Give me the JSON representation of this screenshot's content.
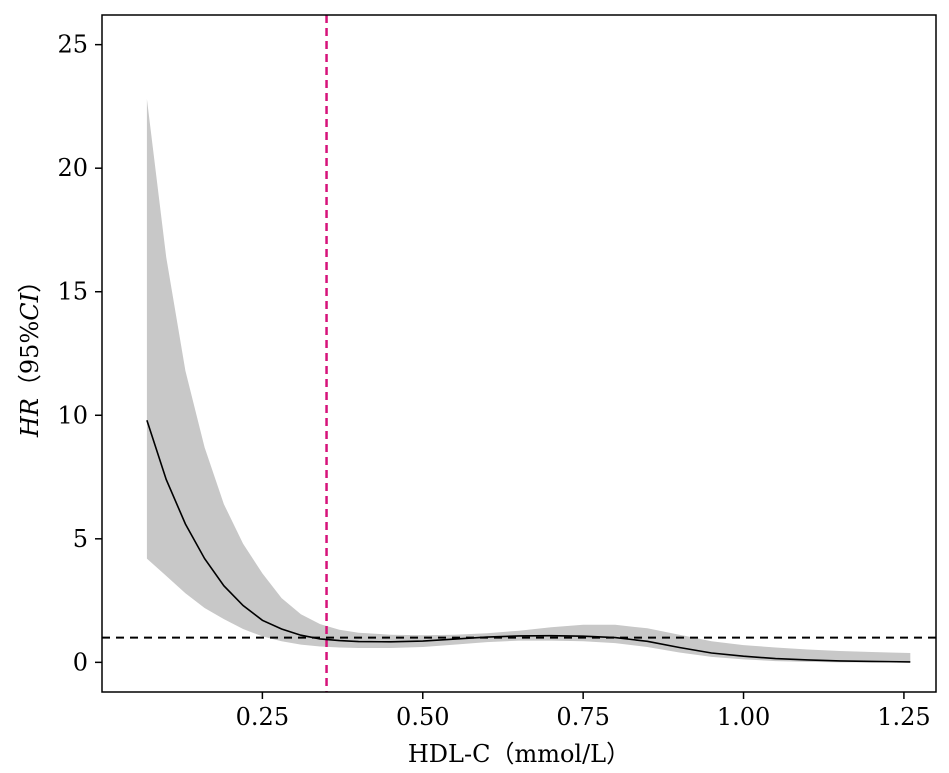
{
  "chart_data": {
    "type": "line",
    "xlabel": "HDL-C（mmol/L）",
    "ylabel_italic": "HR",
    "ylabel_open": "（95%",
    "ylabel_ci": "CI",
    "ylabel_close": "）",
    "xlim": [
      0.0,
      1.3
    ],
    "ylim": [
      -1.2,
      26.2
    ],
    "x_ticks": [
      0.25,
      0.5,
      0.75,
      1.0,
      1.25
    ],
    "x_tick_labels": [
      "0.25",
      "0.50",
      "0.75",
      "1.00",
      "1.25"
    ],
    "y_ticks": [
      0,
      5,
      10,
      15,
      20,
      25
    ],
    "y_tick_labels": [
      "0",
      "5",
      "10",
      "15",
      "20",
      "25"
    ],
    "reference_line_y": 1,
    "cutoff_line_x": 0.35,
    "grid": false,
    "colors": {
      "curve": "#000000",
      "ci_band": "#c8c8c8",
      "reference_line": "#000000",
      "cutoff_line": "#d6137a"
    },
    "series": [
      {
        "x": [
          0.07,
          0.1,
          0.13,
          0.16,
          0.19,
          0.22,
          0.25,
          0.28,
          0.31,
          0.34,
          0.37,
          0.4,
          0.45,
          0.5,
          0.55,
          0.6,
          0.65,
          0.7,
          0.75,
          0.8,
          0.85,
          0.9,
          0.95,
          1.0,
          1.05,
          1.1,
          1.15,
          1.2,
          1.26
        ],
        "y": [
          9.8,
          7.4,
          5.6,
          4.2,
          3.1,
          2.3,
          1.7,
          1.35,
          1.1,
          0.95,
          0.88,
          0.84,
          0.83,
          0.86,
          0.94,
          1.02,
          1.07,
          1.08,
          1.06,
          1.0,
          0.85,
          0.6,
          0.38,
          0.25,
          0.15,
          0.1,
          0.06,
          0.04,
          0.02
        ],
        "lower": [
          4.2,
          3.5,
          2.8,
          2.2,
          1.75,
          1.35,
          1.05,
          0.85,
          0.72,
          0.64,
          0.6,
          0.58,
          0.58,
          0.62,
          0.72,
          0.82,
          0.88,
          0.88,
          0.85,
          0.78,
          0.62,
          0.4,
          0.22,
          0.12,
          0.05,
          0.02,
          0.0,
          0.0,
          0.0
        ],
        "upper": [
          22.8,
          16.4,
          11.8,
          8.7,
          6.4,
          4.8,
          3.6,
          2.6,
          1.95,
          1.55,
          1.32,
          1.2,
          1.12,
          1.1,
          1.12,
          1.18,
          1.28,
          1.42,
          1.52,
          1.52,
          1.38,
          1.12,
          0.85,
          0.7,
          0.6,
          0.52,
          0.46,
          0.42,
          0.38
        ]
      }
    ]
  }
}
